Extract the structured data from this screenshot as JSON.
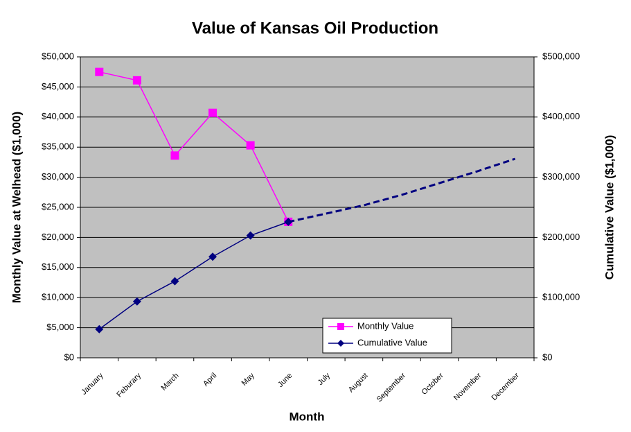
{
  "chart_data": {
    "type": "line",
    "title": "Value of Kansas Oil Production",
    "x_label": "Month",
    "y_label": "Monthly Value at Welhead  ($1,000)",
    "y2_label": "Cumulative Value ($1,000)",
    "categories": [
      "January",
      "Feburary",
      "March",
      "April",
      "May",
      "June",
      "July",
      "August",
      "September",
      "October",
      "November",
      "December"
    ],
    "series": [
      {
        "name": "Monthly Value",
        "color": "#ff00ff",
        "marker": "square",
        "axis": "y",
        "values": [
          47500,
          46100,
          33600,
          40700,
          35300,
          22600,
          null,
          null,
          null,
          null,
          null,
          null
        ]
      },
      {
        "name": "Cumulative Value",
        "color": "#000080",
        "marker": "diamond",
        "axis": "y2",
        "values": [
          47500,
          93600,
          127200,
          167900,
          203200,
          225800,
          null,
          null,
          null,
          null,
          null,
          null
        ]
      },
      {
        "color": "#000080",
        "dashed": true,
        "axis": "y2",
        "values": [
          null,
          null,
          null,
          null,
          null,
          225800,
          239600,
          253500,
          270700,
          290300,
          309900,
          330600
        ]
      }
    ],
    "ylim": [
      0,
      50000
    ],
    "yticks": [
      {
        "value": 0,
        "label": "$0"
      },
      {
        "value": 5000,
        "label": "$5,000"
      },
      {
        "value": 10000,
        "label": "$10,000"
      },
      {
        "value": 15000,
        "label": "$15,000"
      },
      {
        "value": 20000,
        "label": "$20,000"
      },
      {
        "value": 25000,
        "label": "$25,000"
      },
      {
        "value": 30000,
        "label": "$30,000"
      },
      {
        "value": 35000,
        "label": "$35,000"
      },
      {
        "value": 40000,
        "label": "$40,000"
      },
      {
        "value": 45000,
        "label": "$45,000"
      },
      {
        "value": 50000,
        "label": "$50,000"
      }
    ],
    "y2lim": [
      0,
      500000
    ],
    "y2ticks": [
      {
        "value": 0,
        "label": "$0"
      },
      {
        "value": 100000,
        "label": "$100,000"
      },
      {
        "value": 200000,
        "label": "$200,000"
      },
      {
        "value": 300000,
        "label": "$300,000"
      },
      {
        "value": 400000,
        "label": "$400,000"
      },
      {
        "value": 500000,
        "label": "$500,000"
      }
    ],
    "grid": true,
    "plot_background": "#c0c0c0",
    "legend": "lower right"
  }
}
